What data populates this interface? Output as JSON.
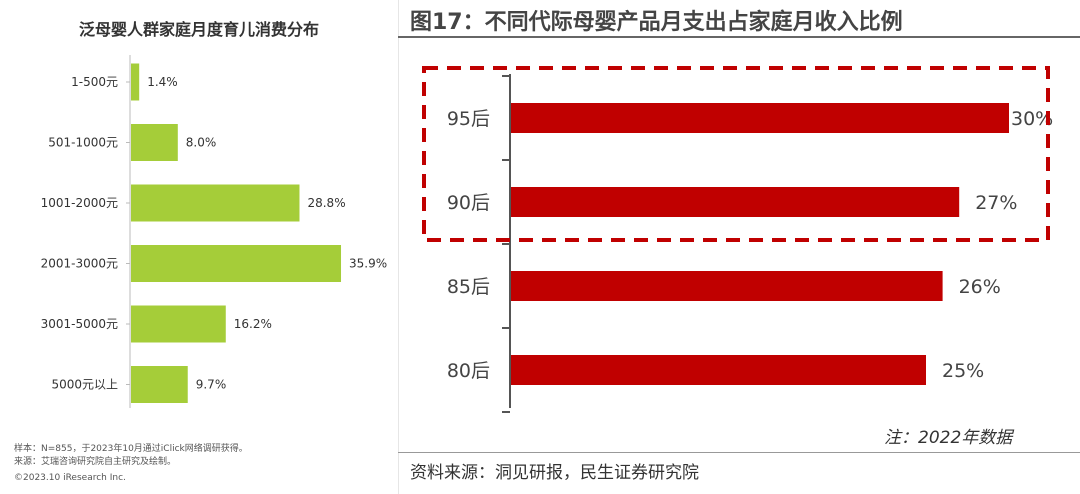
{
  "left": {
    "title": "泛母婴人群家庭月度育儿消费分布",
    "footnotes": [
      "样本：N=855，于2023年10月通过iClick网络调研获得。",
      "来源：艾瑞咨询研究院自主研究及绘制。",
      "©2023.10 iResearch Inc."
    ]
  },
  "right": {
    "title": "图17：不同代际母婴产品月支出占家庭月收入比例",
    "note": "注：2022年数据",
    "source": "资料来源：洞见研报，民生证券研究院"
  },
  "chart_data": [
    {
      "type": "bar",
      "orientation": "horizontal",
      "title": "泛母婴人群家庭月度育儿消费分布",
      "categories": [
        "1-500元",
        "501-1000元",
        "1001-2000元",
        "2001-3000元",
        "3001-5000元",
        "5000元以上"
      ],
      "values": [
        1.4,
        8.0,
        28.8,
        35.9,
        16.2,
        9.7
      ],
      "labels": [
        "1.4%",
        "8.0%",
        "28.8%",
        "35.9%",
        "16.2%",
        "9.7%"
      ],
      "color": "#a5cd39"
    },
    {
      "type": "bar",
      "orientation": "horizontal",
      "title": "图17：不同代际母婴产品月支出占家庭月收入比例",
      "categories": [
        "95后",
        "90后",
        "85后",
        "80后"
      ],
      "values": [
        30,
        27,
        26,
        25
      ],
      "labels": [
        "30%",
        "27%",
        "26%",
        "25%"
      ],
      "highlighted": [
        "95后",
        "90后"
      ],
      "color": "#c00000"
    }
  ]
}
